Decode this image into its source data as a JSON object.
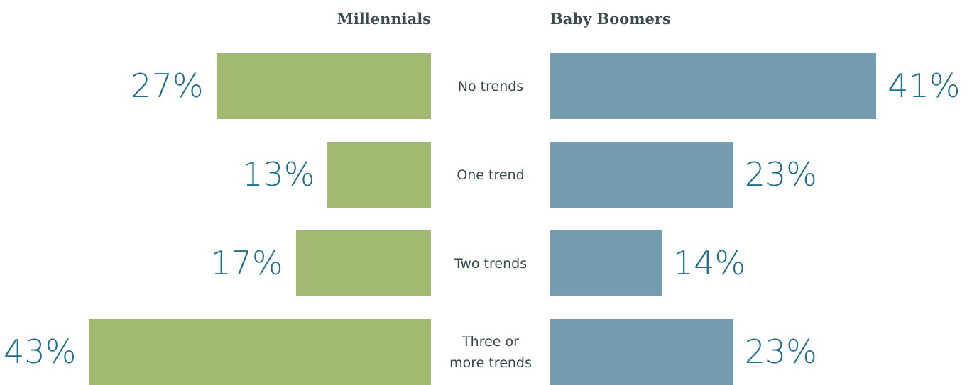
{
  "chart_data": {
    "type": "butterfly",
    "categories": [
      "No trends",
      "One trend",
      "Two trends",
      "Three or more trends"
    ],
    "series": [
      {
        "name": "Millennials",
        "color": "#a1b970",
        "values": [
          27,
          13,
          17,
          43
        ],
        "value_labels": [
          "27%",
          "13%",
          "17%",
          "43%"
        ]
      },
      {
        "name": "Baby Boomers",
        "color": "#749daf",
        "values": [
          41,
          23,
          14,
          23
        ],
        "value_labels": [
          "41%",
          "23%",
          "14%",
          "23%"
        ]
      }
    ]
  }
}
